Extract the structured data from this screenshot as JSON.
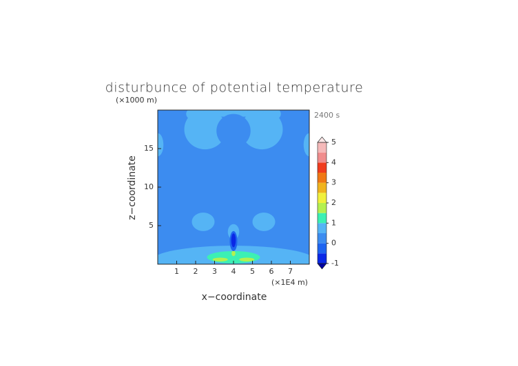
{
  "chart_data": {
    "type": "contour",
    "title": "disturbunce of potential temperature",
    "y_unit_label": "(×1000 m)",
    "time_label": "2400 s",
    "ylabel": "z−coordinate",
    "xlabel": "x−coordinate",
    "x_unit_label": "(×1E4 m)",
    "xlim": [
      0,
      8
    ],
    "xticks": [
      1,
      2,
      3,
      4,
      5,
      6,
      7
    ],
    "ylim": [
      0,
      20
    ],
    "yticks": [
      5,
      10,
      15
    ],
    "base_value": 0.25,
    "regions": [
      {
        "x": 2.5,
        "z": 17.5,
        "rx": 1.1,
        "rz": 2.6,
        "value": 0.75
      },
      {
        "x": 5.5,
        "z": 17.5,
        "rx": 1.1,
        "rz": 2.6,
        "value": 0.75
      },
      {
        "x": 4,
        "z": 19.8,
        "rx": 1.6,
        "rz": 0.7,
        "value": 0.75
      },
      {
        "x": 4,
        "z": 17.3,
        "rx": 0.9,
        "rz": 2.2,
        "value": 0.25
      },
      {
        "x": 1.9,
        "z": 19.5,
        "rx": 0.4,
        "rz": 0.8,
        "value": 0.75
      },
      {
        "x": 6.1,
        "z": 19.5,
        "rx": 0.4,
        "rz": 0.8,
        "value": 0.75
      },
      {
        "x": 0,
        "z": 15.5,
        "rx": 0.3,
        "rz": 1.5,
        "value": 0.75
      },
      {
        "x": 8,
        "z": 15.5,
        "rx": 0.3,
        "rz": 1.5,
        "value": 0.75
      },
      {
        "x": 2.4,
        "z": 5.5,
        "rx": 0.6,
        "rz": 1.2,
        "value": 0.75
      },
      {
        "x": 5.6,
        "z": 5.5,
        "rx": 0.6,
        "rz": 1.2,
        "value": 0.75
      },
      {
        "x": 4,
        "z": 0.5,
        "rx": 4.3,
        "rz": 1.9,
        "value": 0.75
      },
      {
        "x": 4,
        "z": 4.2,
        "rx": 0.3,
        "rz": 1,
        "value": 0.75
      },
      {
        "x": 4,
        "z": 0.9,
        "rx": 1.4,
        "rz": 0.8,
        "value": 1.25
      },
      {
        "x": 3.3,
        "z": 0.6,
        "rx": 0.4,
        "rz": 0.25,
        "value": 1.75
      },
      {
        "x": 4.7,
        "z": 0.6,
        "rx": 0.4,
        "rz": 0.25,
        "value": 1.75
      },
      {
        "x": 4,
        "z": 1.4,
        "rx": 0.1,
        "rz": 0.35,
        "value": 1.75
      },
      {
        "x": 4,
        "z": 3,
        "rx": 0.2,
        "rz": 1.3,
        "value": -0.25
      },
      {
        "x": 4,
        "z": 3.1,
        "rx": 0.12,
        "rz": 0.9,
        "value": -0.75
      }
    ],
    "levels": [
      -1,
      -0.5,
      0,
      0.5,
      1,
      1.5,
      2,
      2.5,
      3,
      3.5,
      4,
      4.5,
      5
    ],
    "colors": [
      "#0a28e6",
      "#1e64f0",
      "#3c8cf0",
      "#55b4f5",
      "#3cf0b4",
      "#b4f050",
      "#f0f03c",
      "#f0b41e",
      "#f07814",
      "#f03c1e",
      "#f08c8c",
      "#f5b9b9"
    ],
    "under_color": "#0000a0",
    "over_color": "#fae6e6",
    "cticks": [
      -1,
      0,
      1,
      2,
      3,
      4,
      5
    ]
  }
}
